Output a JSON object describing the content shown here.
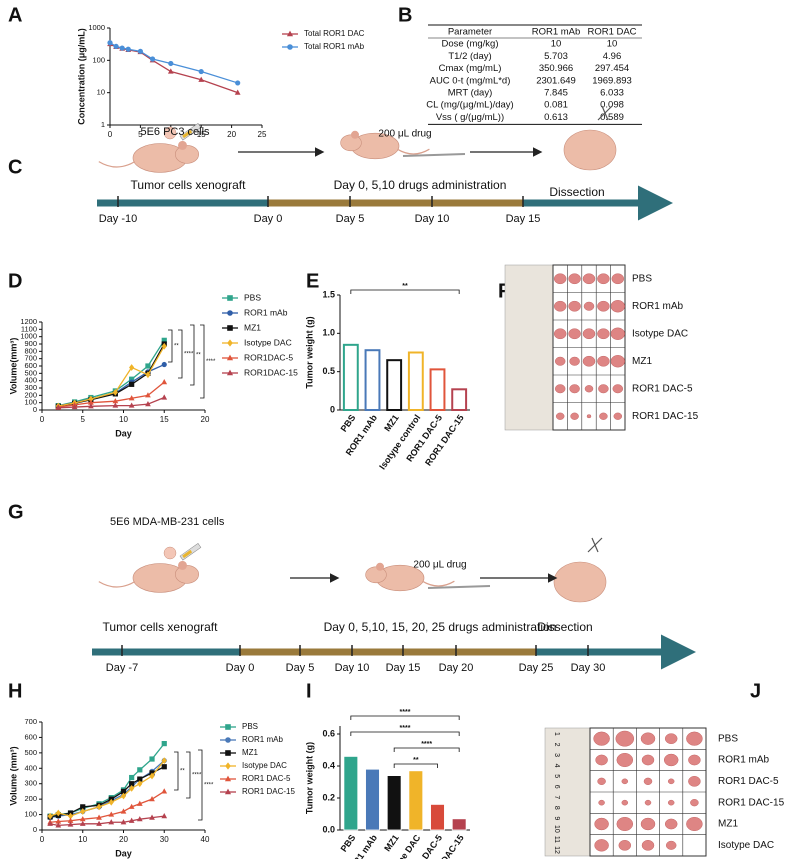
{
  "panel_labels": [
    "A",
    "B",
    "C",
    "D",
    "E",
    "F",
    "G",
    "H",
    "I",
    "J"
  ],
  "chart_data": [
    {
      "type": "line",
      "ylabel": "Concentration (μg/mL)",
      "log_y": true,
      "xlim": [
        0,
        25
      ],
      "xticks": [
        0,
        5,
        10,
        15,
        20,
        25
      ],
      "ylim": [
        1,
        1000
      ],
      "yticks": [
        1,
        10,
        100,
        1000
      ],
      "x": [
        0,
        1,
        2,
        3,
        5,
        7,
        10,
        15,
        21
      ],
      "series": [
        {
          "name": "Total ROR1 DAC",
          "color": "#b5424f",
          "marker": "triangle",
          "values": [
            320,
            260,
            230,
            210,
            180,
            100,
            45,
            25,
            10
          ]
        },
        {
          "name": "Total ROR1 mAb",
          "color": "#4a8fd8",
          "marker": "circle",
          "values": [
            350,
            270,
            240,
            220,
            190,
            110,
            80,
            45,
            20
          ]
        }
      ]
    },
    {
      "type": "line",
      "xlabel": "Day",
      "ylabel": "Volume(mm³)",
      "xlim": [
        0,
        20
      ],
      "xticks": [
        0,
        5,
        10,
        15,
        20
      ],
      "ylim": [
        0,
        1200
      ],
      "yticks": [
        0,
        100,
        200,
        300,
        400,
        500,
        600,
        700,
        800,
        900,
        1000,
        1100,
        1200
      ],
      "x": [
        2,
        4,
        6,
        9,
        11,
        13,
        15
      ],
      "series": [
        {
          "name": "PBS",
          "color": "#2fa58c",
          "marker": "square",
          "values": [
            60,
            110,
            170,
            260,
            420,
            600,
            950
          ]
        },
        {
          "name": "ROR1 mAb",
          "color": "#2f5ea8",
          "marker": "circle",
          "values": [
            55,
            100,
            150,
            230,
            380,
            520,
            620
          ]
        },
        {
          "name": "MZ1",
          "color": "#111111",
          "marker": "square",
          "values": [
            50,
            90,
            140,
            220,
            350,
            500,
            900
          ]
        },
        {
          "name": "Isotype DAC",
          "color": "#f0b429",
          "marker": "diamond",
          "values": [
            55,
            95,
            150,
            240,
            580,
            480,
            870
          ]
        },
        {
          "name": "ROR1DAC-5",
          "color": "#e0553b",
          "marker": "triangle",
          "values": [
            40,
            70,
            100,
            120,
            160,
            200,
            380
          ]
        },
        {
          "name": "ROR1DAC-15",
          "color": "#b5424f",
          "marker": "triangle",
          "values": [
            30,
            40,
            50,
            60,
            60,
            80,
            170
          ]
        }
      ],
      "annotations": [
        "**",
        "****",
        "**",
        "****"
      ]
    },
    {
      "type": "bar",
      "ylabel": "Tumor weight (g)",
      "filled": false,
      "ylim": [
        0,
        1.5
      ],
      "yticks": [
        0,
        0.5,
        {
          "value": 1,
          "label": "1.0"
        },
        1.5
      ],
      "categories": [
        "PBS",
        "ROR1 mAb",
        "MZ1",
        "Isotype control",
        "ROR1 DAC-5",
        "ROR1 DAC-15"
      ],
      "values": [
        0.85,
        0.78,
        0.65,
        0.75,
        0.53,
        0.27
      ],
      "colors": [
        "#2fa58c",
        "#4a79b8",
        "#111111",
        "#f0b429",
        "#e0553b",
        "#b5424f"
      ],
      "annotations": [
        "**"
      ]
    },
    {
      "type": "line",
      "xlabel": "Day",
      "ylabel": "Volume (mm³)",
      "xlim": [
        0,
        40
      ],
      "xticks": [
        0,
        10,
        20,
        30,
        40
      ],
      "ylim": [
        0,
        700
      ],
      "yticks": [
        0,
        100,
        200,
        300,
        400,
        500,
        600,
        700
      ],
      "x": [
        2,
        4,
        7,
        10,
        14,
        17,
        20,
        22,
        24,
        27,
        30
      ],
      "series": [
        {
          "name": "PBS",
          "color": "#2fa58c",
          "marker": "square",
          "values": [
            90,
            100,
            110,
            140,
            170,
            210,
            260,
            340,
            390,
            460,
            560
          ]
        },
        {
          "name": "ROR1 mAb",
          "color": "#4a79b8",
          "marker": "circle",
          "values": [
            80,
            90,
            100,
            120,
            150,
            190,
            230,
            280,
            330,
            380,
            450
          ]
        },
        {
          "name": "MZ1",
          "color": "#111111",
          "marker": "square",
          "values": [
            85,
            95,
            110,
            150,
            160,
            200,
            250,
            300,
            330,
            370,
            410
          ]
        },
        {
          "name": "Isotype DAC",
          "color": "#f0b429",
          "marker": "diamond",
          "values": [
            90,
            110,
            90,
            120,
            150,
            180,
            220,
            270,
            300,
            350,
            450
          ]
        },
        {
          "name": "ROR1 DAC-5",
          "color": "#e0553b",
          "marker": "triangle",
          "values": [
            50,
            55,
            60,
            70,
            80,
            100,
            120,
            150,
            170,
            200,
            250
          ]
        },
        {
          "name": "ROR1 DAC-15",
          "color": "#b5424f",
          "marker": "triangle",
          "values": [
            40,
            30,
            35,
            40,
            40,
            50,
            50,
            60,
            70,
            80,
            90
          ]
        }
      ],
      "annotations": [
        "**",
        "****",
        "****"
      ]
    },
    {
      "type": "bar",
      "ylabel": "Tumor weight (g)",
      "filled": true,
      "ylim": [
        0,
        0.65
      ],
      "yticks": [
        {
          "value": 0,
          "label": "0.0"
        },
        0.2,
        0.4,
        0.6
      ],
      "categories": [
        "PBS",
        "ROR1 mAb",
        "MZ1",
        "Isotype DAC",
        "ROR1 DAC-5",
        "ROR1 DAC-15"
      ],
      "values": [
        0.46,
        0.38,
        0.34,
        0.37,
        0.16,
        0.07
      ],
      "colors": [
        "#2fa58c",
        "#4a79b8",
        "#111111",
        "#f0b429",
        "#d84a3a",
        "#b5424f"
      ],
      "annotations": [
        "****",
        "****",
        "****",
        "**"
      ]
    }
  ],
  "table": {
    "header": [
      "Parameter",
      "ROR1 mAb",
      "ROR1 DAC"
    ],
    "rows": [
      [
        "Dose (mg/kg)",
        "10",
        "10"
      ],
      [
        "T1/2 (day)",
        "5.703",
        "4.96"
      ],
      [
        "Cmax (mg/mL)",
        "350.966",
        "297.454"
      ],
      [
        "AUC 0-t (mg/mL*d)",
        "2301.649",
        "1969.893"
      ],
      [
        "MRT (day)",
        "7.845",
        "6.033"
      ],
      [
        "CL (mg/(μg/mL)/day)",
        "0.081",
        "0.098"
      ],
      [
        "Vss ( g/(μg/mL))",
        "0.613",
        "0.589"
      ]
    ]
  },
  "timelines": [
    {
      "cells": "5E6 PC3 cells",
      "xenograft": "Tumor cells xenograft",
      "drug": "200 μL drug",
      "administration": "Day 0, 5,10 drugs administration",
      "end": "Dissection",
      "days": [
        "Day -10",
        "Day 0",
        "Day 5",
        "Day 10",
        "Day 15"
      ]
    },
    {
      "cells": "5E6 MDA-MB-231 cells",
      "xenograft": "Tumor cells xenograft",
      "drug": "200 μL drug",
      "administration": "Day 0, 5,10, 15, 20, 25 drugs administration",
      "end": "Dissection",
      "days": [
        "Day -7",
        "Day 0",
        "Day 5",
        "Day 10",
        "Day 15",
        "Day 20",
        "Day 25",
        "Day 30"
      ]
    }
  ],
  "photos": [
    {
      "labels": [
        "PBS",
        "ROR1 mAb",
        "Isotype DAC",
        "MZ1",
        "ROR1 DAC-5",
        "ROR1 DAC-15"
      ]
    },
    {
      "labels": [
        "PBS",
        "ROR1 mAb",
        "ROR1 DAC-5",
        "ROR1 DAC-15",
        "MZ1",
        "Isotype DAC"
      ],
      "ruler": [
        1,
        2,
        3,
        4,
        5,
        6,
        7,
        8,
        9,
        10,
        11,
        12
      ]
    }
  ]
}
